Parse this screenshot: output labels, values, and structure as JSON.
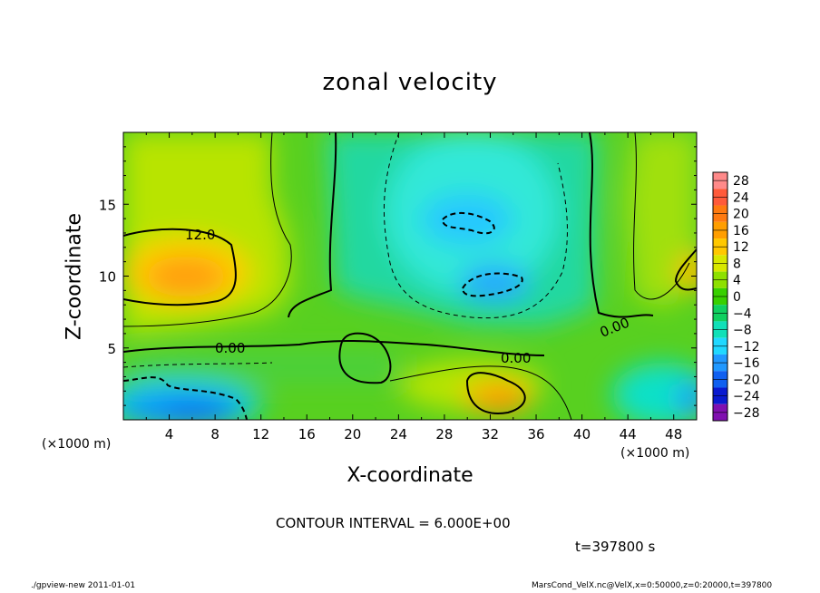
{
  "chart_data": {
    "type": "heatmap",
    "title": "zonal velocity",
    "xlabel": "X-coordinate",
    "ylabel": "Z-coordinate",
    "x_unit_label": "(×1000 m)",
    "xlim": [
      0,
      50
    ],
    "ylim": [
      0,
      20
    ],
    "x_ticks": [
      4,
      8,
      12,
      16,
      20,
      24,
      28,
      32,
      36,
      40,
      44,
      48
    ],
    "x_tick_labels": [
      "4",
      "8",
      "12",
      "16",
      "20",
      "24",
      "28",
      "32",
      "36",
      "40",
      "44",
      "48"
    ],
    "y_ticks": [
      5,
      10,
      15
    ],
    "y_tick_labels": [
      "5",
      "10",
      "15"
    ],
    "colorbar": {
      "levels": [
        -28,
        -24,
        -20,
        -16,
        -12,
        -8,
        -4,
        0,
        4,
        8,
        12,
        16,
        20,
        24,
        28
      ],
      "labels": [
        "28",
        "24",
        "20",
        "16",
        "12",
        "8",
        "4",
        "0",
        "−4",
        "−8",
        "−12",
        "−16",
        "−20",
        "−24",
        "−28"
      ],
      "colors": [
        "#ff8a8a",
        "#ff5a3a",
        "#ff7a10",
        "#ff9e00",
        "#ffc800",
        "#d8e800",
        "#8ee000",
        "#38d000",
        "#10d060",
        "#10e0b8",
        "#20d8ff",
        "#2098ff",
        "#1060f0",
        "#0a1ad0",
        "#8010b0"
      ]
    },
    "contour_labels": [
      "12.0",
      "0.00",
      "0.00",
      "0.00"
    ],
    "contour_interval": "CONTOUR INTERVAL = 6.000E+00",
    "time_label": "t=397800 s",
    "footer_left": "./gpview-new 2011-01-01",
    "footer_right": "MarsCond_VelX.nc@VelX,x=0:50000,z=0:20000,t=397800"
  }
}
